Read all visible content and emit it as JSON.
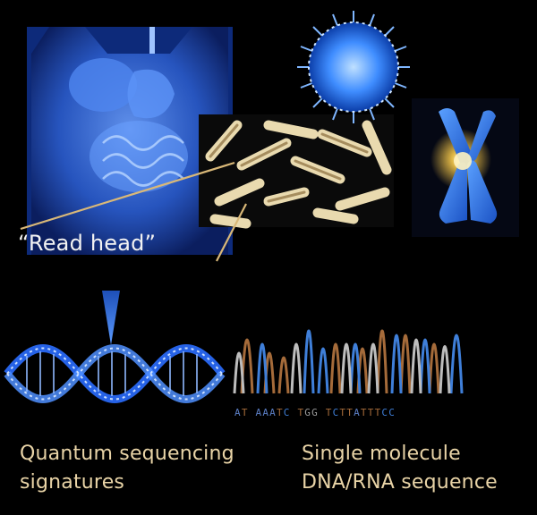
{
  "labels": {
    "read_head": "“Read head”",
    "left_caption_line1": "Quantum sequencing",
    "left_caption_line2": "signatures",
    "right_caption_line1": "Single molecule",
    "right_caption_line2": "DNA/RNA sequence"
  },
  "sequence": {
    "bases": [
      "A",
      "T",
      "A",
      "A",
      "A",
      "T",
      "C",
      "T",
      "G",
      "G",
      "T",
      "C",
      "T",
      "T",
      "A",
      "T",
      "T",
      "T",
      "C",
      "C"
    ],
    "base_colors": {
      "A": "#5b7ec4",
      "T": "#a56b3a",
      "G": "#9a9a9a",
      "C": "#3f7fd9"
    }
  },
  "colors": {
    "background": "#000000",
    "caption": "#e9d4a7",
    "pointer_line": "#d9b878",
    "blue_glow": "#4a8cff"
  }
}
